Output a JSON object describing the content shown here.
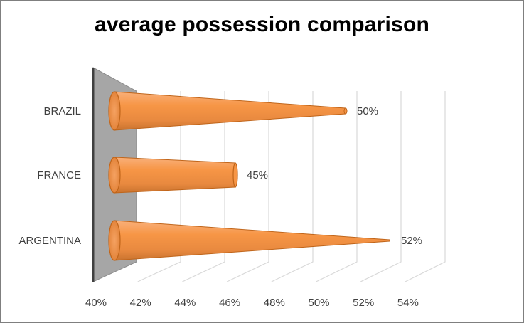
{
  "chart_data": {
    "type": "bar",
    "style": "3d-cone-horizontal",
    "title": "average possession comparison",
    "categories": [
      "BRAZIL",
      "FRANCE",
      "ARGENTINA"
    ],
    "values": [
      50,
      45,
      52
    ],
    "data_labels": [
      "50%",
      "45%",
      "52%"
    ],
    "xlim": [
      40,
      54
    ],
    "x_ticks": [
      "40%",
      "42%",
      "44%",
      "46%",
      "48%",
      "50%",
      "52%",
      "54%"
    ],
    "grid": true,
    "legend": "none",
    "colors": {
      "cone": "#f79646",
      "cone_dark": "#c0651a",
      "wall": "#a6a6a6"
    }
  }
}
